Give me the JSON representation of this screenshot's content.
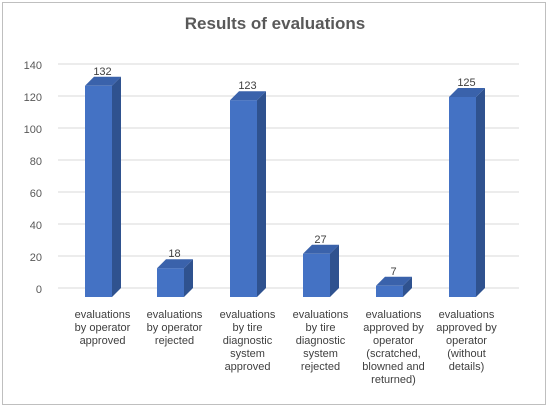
{
  "chart_data": {
    "type": "bar",
    "title": "Results of evaluations",
    "xlabel": "",
    "ylabel": "",
    "ylim": [
      0,
      140
    ],
    "yticks": [
      0,
      20,
      40,
      60,
      80,
      100,
      120,
      140
    ],
    "grid": true,
    "legend": "none",
    "categories": [
      "evaluations by operator approved",
      "evaluations by operator rejected",
      "evaluations by tire diagnostic system approved",
      "evaluations by tire diagnostic system rejected",
      "evaluations approved by operator (scratched, blowned and returned)",
      "evaluations approved by operator (without details)"
    ],
    "category_lines": [
      [
        "evaluations",
        "by operator",
        "approved"
      ],
      [
        "evaluations",
        "by operator",
        "rejected"
      ],
      [
        "evaluations",
        "by tire",
        "diagnostic",
        "system",
        "approved"
      ],
      [
        "evaluations",
        "by tire",
        "diagnostic",
        "system",
        "rejected"
      ],
      [
        "evaluations",
        "approved by",
        "operator",
        "(scratched,",
        "blowned and",
        "returned)"
      ],
      [
        "evaluations",
        "approved by",
        "operator",
        "(without",
        "details)"
      ]
    ],
    "values": [
      132,
      18,
      123,
      27,
      7,
      125
    ],
    "data_labels": [
      "132",
      "18",
      "123",
      "27",
      "7",
      "125"
    ],
    "colors": {
      "bar_front": "#4472c4",
      "bar_side": "#2f528f",
      "bar_top": "#3a62ab",
      "grid": "#d9d9d9",
      "axis_text": "#595959",
      "label_text": "#404040"
    }
  }
}
